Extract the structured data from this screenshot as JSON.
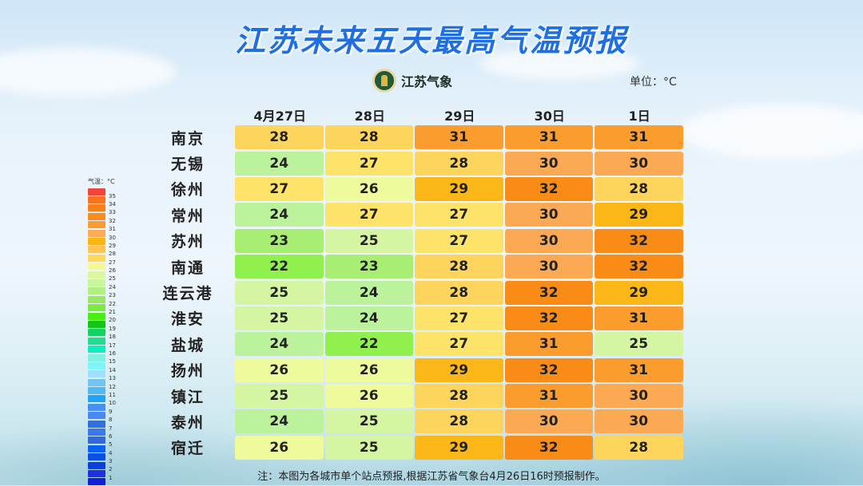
{
  "title": "江苏未来五天最高气温预报",
  "logo_text": "江苏气象",
  "unit": "单位：°C",
  "columns": [
    "4月27日",
    "28日",
    "29日",
    "30日",
    "1日"
  ],
  "rows": [
    {
      "city": "南京",
      "values": [
        28,
        28,
        31,
        31,
        31
      ]
    },
    {
      "city": "无锡",
      "values": [
        24,
        27,
        28,
        30,
        30
      ]
    },
    {
      "city": "徐州",
      "values": [
        27,
        26,
        29,
        32,
        28
      ]
    },
    {
      "city": "常州",
      "values": [
        24,
        27,
        27,
        30,
        29
      ]
    },
    {
      "city": "苏州",
      "values": [
        23,
        25,
        27,
        30,
        32
      ]
    },
    {
      "city": "南通",
      "values": [
        22,
        23,
        28,
        30,
        32
      ]
    },
    {
      "city": "连云港",
      "values": [
        25,
        24,
        28,
        32,
        29
      ]
    },
    {
      "city": "淮安",
      "values": [
        25,
        24,
        27,
        32,
        31
      ]
    },
    {
      "city": "盐城",
      "values": [
        24,
        22,
        27,
        31,
        25
      ]
    },
    {
      "city": "扬州",
      "values": [
        26,
        26,
        29,
        32,
        31
      ]
    },
    {
      "city": "镇江",
      "values": [
        25,
        26,
        28,
        31,
        30
      ]
    },
    {
      "city": "泰州",
      "values": [
        24,
        25,
        28,
        30,
        30
      ]
    },
    {
      "city": "宿迁",
      "values": [
        26,
        25,
        29,
        32,
        28
      ]
    }
  ],
  "cell_colors": {
    "22": "#8ff04e",
    "23": "#a8ee72",
    "24": "#bdf29c",
    "25": "#d6f5a2",
    "26": "#effa9c",
    "27": "#fde36a",
    "28": "#fdd45c",
    "29": "#fbb718",
    "30": "#fca954",
    "31": "#fb9d2e",
    "32": "#f98b17"
  },
  "legend": {
    "title": "气温：°C",
    "colors": [
      "#f2443a",
      "#f5731e",
      "#f7801a",
      "#f98a1e",
      "#fb9a33",
      "#fcaa55",
      "#fbb515",
      "#fdc453",
      "#fdd85a",
      "#f5fa90",
      "#dcf7a0",
      "#c8f5a0",
      "#b0f080",
      "#9be860",
      "#7fe845",
      "#4aee10",
      "#16c416",
      "#14d266",
      "#20dc90",
      "#10eec0",
      "#80f0e0",
      "#80f4fa",
      "#a0e0fa",
      "#70c4f5",
      "#50b8f5",
      "#20a4f8",
      "#4890f0",
      "#4a88f0",
      "#3070e0",
      "#3a78f0",
      "#3468d8",
      "#0a60f0",
      "#0a50e0",
      "#0a40e0",
      "#2030e0",
      "#1020d8"
    ],
    "labels": [
      "35",
      "34",
      "33",
      "32",
      "31",
      "30",
      "29",
      "28",
      "27",
      "26",
      "25",
      "24",
      "23",
      "22",
      "21",
      "20",
      "19",
      "18",
      "17",
      "16",
      "15",
      "14",
      "13",
      "12",
      "11",
      "10",
      "9",
      "8",
      "7",
      "6",
      "5",
      "4",
      "3",
      "2",
      "1"
    ]
  },
  "note": "注：本图为各城市单个站点预报,根据江苏省气象台4月26日16时预报制作。"
}
